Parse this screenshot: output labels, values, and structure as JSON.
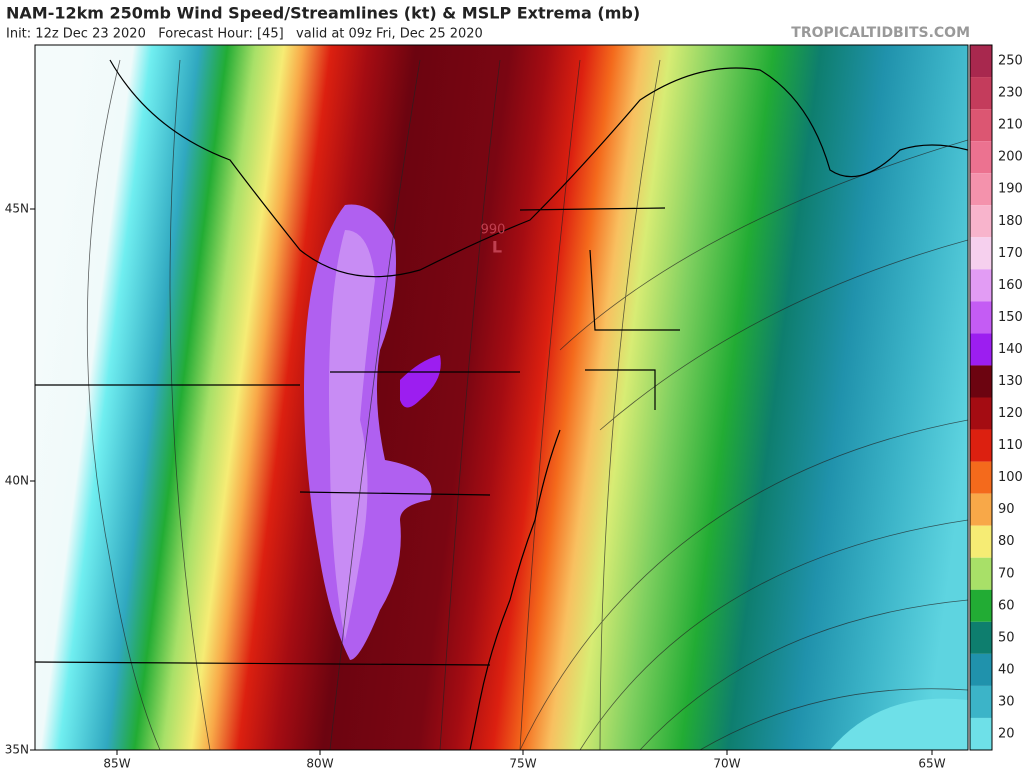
{
  "header": {
    "title": "NAM-12km 250mb Wind Speed/Streamlines (kt) & MSLP Extrema (mb)",
    "subtitle": "Init: 12z Dec 23 2020   Forecast Hour: [45]   valid at 09z Fri, Dec 25 2020",
    "watermark": "TROPICALTIDBITS.COM"
  },
  "axes": {
    "x_labels": [
      "85W",
      "80W",
      "75W",
      "70W",
      "65W"
    ],
    "y_labels": [
      "45N",
      "40N",
      "35N"
    ]
  },
  "pressure_low": {
    "value": 990,
    "symbol": "L"
  },
  "colorbar": {
    "labels": [
      250,
      230,
      210,
      200,
      190,
      180,
      170,
      160,
      150,
      140,
      130,
      120,
      110,
      100,
      90,
      80,
      70,
      60,
      50,
      40,
      30,
      20
    ],
    "colors": [
      "#a8284e",
      "#c43c5c",
      "#dc5672",
      "#ec7290",
      "#f492ac",
      "#f8b4cc",
      "#f6d0ee",
      "#e29cf4",
      "#c45cf4",
      "#9c1ef0",
      "#6c0410",
      "#a40c12",
      "#dc2010",
      "#f46a1c",
      "#f8a848",
      "#f6ec74",
      "#a8e068",
      "#22ac34",
      "#0e7e6e",
      "#2092ac",
      "#3cb4c8",
      "#6ee0e8"
    ]
  }
}
